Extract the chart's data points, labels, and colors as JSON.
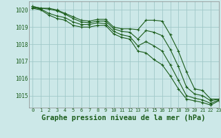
{
  "bg_color": "#cce8e8",
  "grid_color": "#a0c8c8",
  "line_color": "#1a5c1a",
  "marker_color": "#1a5c1a",
  "xlabel": "Graphe pression niveau de la mer (hPa)",
  "xlabel_fontsize": 7.5,
  "xlim": [
    -0.5,
    23
  ],
  "ylim": [
    1014.3,
    1020.5
  ],
  "yticks": [
    1015,
    1016,
    1017,
    1018,
    1019,
    1020
  ],
  "xticks": [
    0,
    1,
    2,
    3,
    4,
    5,
    6,
    7,
    8,
    9,
    10,
    11,
    12,
    13,
    14,
    15,
    16,
    17,
    18,
    19,
    20,
    21,
    22,
    23
  ],
  "series": [
    [
      1020.2,
      1020.1,
      1020.1,
      1020.0,
      1019.8,
      1019.6,
      1019.4,
      1019.35,
      1019.45,
      1019.45,
      1019.0,
      1018.9,
      1018.9,
      1018.85,
      1019.4,
      1019.4,
      1019.35,
      1018.55,
      1017.6,
      1016.4,
      1015.4,
      1015.3,
      1014.8,
      1014.8
    ],
    [
      1020.2,
      1020.1,
      1020.05,
      1019.95,
      1019.75,
      1019.5,
      1019.3,
      1019.25,
      1019.35,
      1019.35,
      1018.9,
      1018.75,
      1018.7,
      1018.3,
      1018.8,
      1018.7,
      1018.5,
      1017.7,
      1016.7,
      1015.5,
      1015.1,
      1015.0,
      1014.7,
      1014.8
    ],
    [
      1020.15,
      1020.05,
      1019.8,
      1019.65,
      1019.55,
      1019.3,
      1019.15,
      1019.15,
      1019.25,
      1019.2,
      1018.75,
      1018.55,
      1018.45,
      1017.9,
      1018.15,
      1017.9,
      1017.6,
      1016.8,
      1015.9,
      1015.0,
      1014.85,
      1014.75,
      1014.55,
      1014.75
    ],
    [
      1020.1,
      1020.0,
      1019.7,
      1019.5,
      1019.4,
      1019.1,
      1019.0,
      1019.0,
      1019.1,
      1019.1,
      1018.6,
      1018.4,
      1018.3,
      1017.6,
      1017.5,
      1017.1,
      1016.8,
      1016.15,
      1015.4,
      1014.8,
      1014.7,
      1014.6,
      1014.45,
      1014.7
    ]
  ]
}
